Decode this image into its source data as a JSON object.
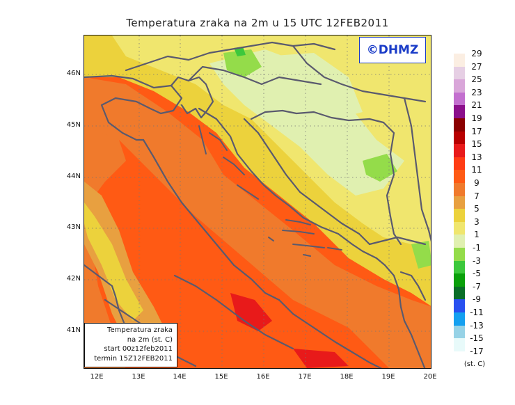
{
  "title": "Temperatura zraka na 2m u 15 UTC 12FEB2011",
  "watermark": "©DHMZ",
  "info": {
    "line1": "Temperatura zraka",
    "line2": "na 2m (st. C)",
    "line3": "start 00z12feb2011",
    "line4": "termin 15Z12FEB2011"
  },
  "lat_labels": [
    "46N",
    "45N",
    "44N",
    "43N",
    "42N",
    "41N"
  ],
  "lon_labels": [
    "12E",
    "13E",
    "14E",
    "15E",
    "16E",
    "17E",
    "18E",
    "19E",
    "20E"
  ],
  "legend": {
    "unit": "(st. C)",
    "bottom_label": "-17",
    "levels": [
      {
        "label": "29",
        "color": "#fbeee2"
      },
      {
        "label": "27",
        "color": "#e6cfe4"
      },
      {
        "label": "25",
        "color": "#d9a6d9"
      },
      {
        "label": "23",
        "color": "#c36fcf"
      },
      {
        "label": "21",
        "color": "#8b0f8b"
      },
      {
        "label": "19",
        "color": "#8b0000"
      },
      {
        "label": "17",
        "color": "#b80000"
      },
      {
        "label": "15",
        "color": "#e81a1a"
      },
      {
        "label": "13",
        "color": "#ff3c14"
      },
      {
        "label": "11",
        "color": "#ff5a14"
      },
      {
        "label": "9",
        "color": "#f07a2c"
      },
      {
        "label": "7",
        "color": "#e8a040"
      },
      {
        "label": "5",
        "color": "#ecd23c"
      },
      {
        "label": "3",
        "color": "#f0e66e"
      },
      {
        "label": "1",
        "color": "#e0f0b0"
      },
      {
        "label": "-1",
        "color": "#94dc4a"
      },
      {
        "label": "-3",
        "color": "#3cc83c"
      },
      {
        "label": "-5",
        "color": "#0aa00a"
      },
      {
        "label": "-7",
        "color": "#0a6e28"
      },
      {
        "label": "-9",
        "color": "#2850f0"
      },
      {
        "label": "-11",
        "color": "#14a0f0"
      },
      {
        "label": "-13",
        "color": "#96d2e6"
      },
      {
        "label": "-15",
        "color": "#e8fafa"
      }
    ]
  },
  "map": {
    "field_colors": {
      "sea": "#ff5a14",
      "sea_dark": "#f04010",
      "hot_spot": "#e81a1a",
      "coastal": "#f07a2c",
      "mid": "#e8a040",
      "warm_land": "#ecd23c",
      "mild_land": "#f0e66e",
      "cool_land": "#e0f0b0",
      "cold_land": "#94dc4a",
      "coldest": "#3cc83c"
    },
    "outline_color": "#5a5a6e",
    "grid_color": "#777777"
  }
}
